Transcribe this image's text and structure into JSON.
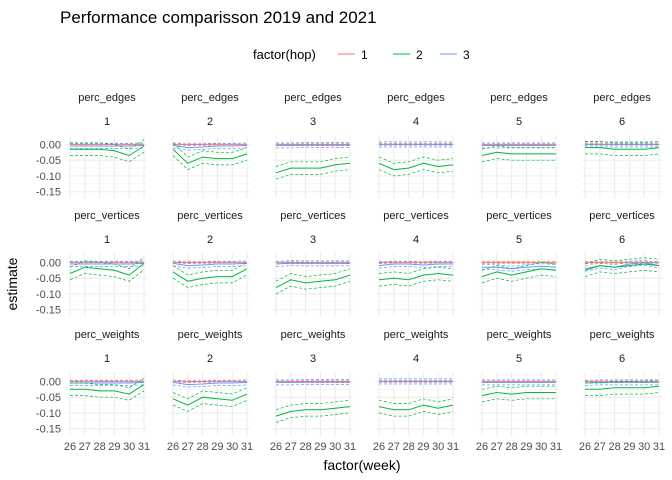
{
  "chart_data": {
    "type": "line",
    "title": "Performance comparisson 2019 and 2021",
    "xlabel": "factor(week)",
    "ylabel": "estimate",
    "legend": {
      "title": "factor(hop)",
      "placement": "top",
      "entries": [
        "1",
        "2",
        "3"
      ]
    },
    "colors": {
      "1": "#F8766D",
      "2": "#00BA38",
      "3": "#619CFF"
    },
    "categories": [
      "26",
      "27",
      "28",
      "29",
      "30",
      "31"
    ],
    "ylim": [
      -0.17,
      0.03
    ],
    "yticks": [
      "0.00",
      "-0.05",
      "-0.10",
      "-0.15"
    ],
    "ytick_values": [
      0,
      -0.05,
      -0.1,
      -0.15
    ],
    "grid": true,
    "rows": [
      "perc_edges",
      "perc_vertices",
      "perc_weights"
    ],
    "cols": [
      "1",
      "2",
      "3",
      "4",
      "5",
      "6"
    ],
    "panels": {
      "perc_edges": [
        {
          "1": [
            0,
            0,
            0,
            0,
            0,
            0
          ],
          "2": [
            -0.015,
            -0.015,
            -0.015,
            -0.02,
            -0.035,
            -0.005
          ],
          "3": [
            -0.005,
            -0.005,
            -0.005,
            -0.005,
            -0.005,
            -0.003
          ]
        },
        {
          "1": [
            0,
            0,
            0,
            0,
            0,
            0
          ],
          "2": [
            -0.015,
            -0.06,
            -0.04,
            -0.045,
            -0.045,
            -0.03
          ],
          "3": [
            -0.003,
            -0.01,
            -0.008,
            -0.005,
            -0.005,
            -0.003
          ]
        },
        {
          "1": [
            0,
            0,
            0,
            0,
            0,
            0
          ],
          "2": [
            -0.09,
            -0.075,
            -0.075,
            -0.075,
            -0.065,
            -0.06
          ],
          "3": [
            -0.003,
            -0.003,
            -0.002,
            -0.002,
            -0.002,
            -0.002
          ]
        },
        {
          "1": [
            0,
            0,
            0,
            0,
            0,
            0
          ],
          "2": [
            -0.06,
            -0.08,
            -0.075,
            -0.06,
            -0.07,
            -0.065
          ],
          "3": [
            0,
            0,
            0,
            0,
            0,
            0
          ]
        },
        {
          "1": [
            0,
            0,
            0,
            0,
            0,
            0
          ],
          "2": [
            -0.035,
            -0.025,
            -0.03,
            -0.03,
            -0.03,
            -0.03
          ],
          "3": [
            -0.003,
            -0.003,
            -0.003,
            -0.003,
            -0.003,
            -0.003
          ]
        },
        {
          "1": [
            0,
            0,
            0,
            0,
            0,
            0
          ],
          "2": [
            -0.01,
            -0.01,
            -0.015,
            -0.015,
            -0.015,
            -0.01
          ],
          "3": [
            0,
            0,
            0,
            0,
            0,
            0
          ]
        }
      ],
      "perc_vertices": [
        {
          "1": [
            0,
            0,
            0,
            0,
            0,
            0
          ],
          "2": [
            -0.035,
            -0.015,
            -0.02,
            -0.025,
            -0.04,
            -0.003
          ],
          "3": [
            -0.005,
            -0.005,
            -0.005,
            -0.005,
            -0.005,
            -0.003
          ]
        },
        {
          "1": [
            0,
            0,
            0,
            0,
            0,
            0
          ],
          "2": [
            -0.03,
            -0.06,
            -0.05,
            -0.045,
            -0.045,
            -0.02
          ],
          "3": [
            -0.003,
            -0.01,
            -0.008,
            -0.005,
            -0.005,
            -0.003
          ]
        },
        {
          "1": [
            0,
            0,
            0,
            0,
            0,
            0
          ],
          "2": [
            -0.08,
            -0.055,
            -0.065,
            -0.06,
            -0.055,
            -0.04
          ],
          "3": [
            -0.005,
            -0.002,
            -0.003,
            -0.003,
            -0.003,
            -0.003
          ]
        },
        {
          "1": [
            0,
            0,
            0,
            0,
            0,
            0
          ],
          "2": [
            -0.055,
            -0.05,
            -0.055,
            -0.04,
            -0.035,
            -0.04
          ],
          "3": [
            -0.01,
            -0.005,
            -0.005,
            -0.008,
            -0.005,
            -0.005
          ]
        },
        {
          "1": [
            0,
            0,
            0,
            0,
            0,
            0
          ],
          "2": [
            -0.045,
            -0.03,
            -0.04,
            -0.03,
            -0.02,
            -0.025
          ],
          "3": [
            -0.015,
            -0.015,
            -0.02,
            -0.015,
            -0.012,
            -0.015
          ]
        },
        {
          "1": [
            0,
            0,
            0,
            0,
            0,
            0
          ],
          "2": [
            -0.025,
            -0.01,
            -0.015,
            -0.01,
            -0.005,
            -0.01
          ],
          "3": [
            -0.02,
            -0.01,
            -0.015,
            -0.005,
            0,
            -0.01
          ]
        }
      ],
      "perc_weights": [
        {
          "1": [
            0,
            0,
            0,
            0,
            0,
            0
          ],
          "2": [
            -0.025,
            -0.025,
            -0.03,
            -0.03,
            -0.04,
            -0.01
          ],
          "3": [
            -0.005,
            -0.005,
            -0.005,
            -0.005,
            -0.005,
            -0.003
          ]
        },
        {
          "1": [
            0,
            0,
            0,
            0,
            0,
            0
          ],
          "2": [
            -0.055,
            -0.075,
            -0.05,
            -0.055,
            -0.06,
            -0.04
          ],
          "3": [
            -0.003,
            -0.01,
            -0.008,
            -0.005,
            -0.005,
            -0.003
          ]
        },
        {
          "1": [
            0,
            0,
            0,
            0,
            0,
            0
          ],
          "2": [
            -0.11,
            -0.095,
            -0.09,
            -0.09,
            -0.085,
            -0.08
          ],
          "3": [
            -0.003,
            -0.003,
            -0.002,
            -0.002,
            -0.002,
            -0.002
          ]
        },
        {
          "1": [
            0,
            0,
            0,
            0,
            0,
            0
          ],
          "2": [
            -0.08,
            -0.09,
            -0.09,
            -0.075,
            -0.085,
            -0.075
          ],
          "3": [
            0,
            0,
            0,
            0,
            0,
            0
          ]
        },
        {
          "1": [
            0,
            0,
            0,
            0,
            0,
            0
          ],
          "2": [
            -0.045,
            -0.035,
            -0.04,
            -0.035,
            -0.035,
            -0.035
          ],
          "3": [
            -0.003,
            -0.003,
            -0.003,
            -0.003,
            -0.003,
            -0.003
          ]
        },
        {
          "1": [
            0,
            0,
            0,
            0,
            0,
            0
          ],
          "2": [
            -0.025,
            -0.025,
            -0.02,
            -0.02,
            -0.02,
            -0.015
          ],
          "3": [
            -0.005,
            -0.003,
            -0.003,
            -0.003,
            -0.003,
            -0.003
          ]
        }
      ]
    }
  }
}
